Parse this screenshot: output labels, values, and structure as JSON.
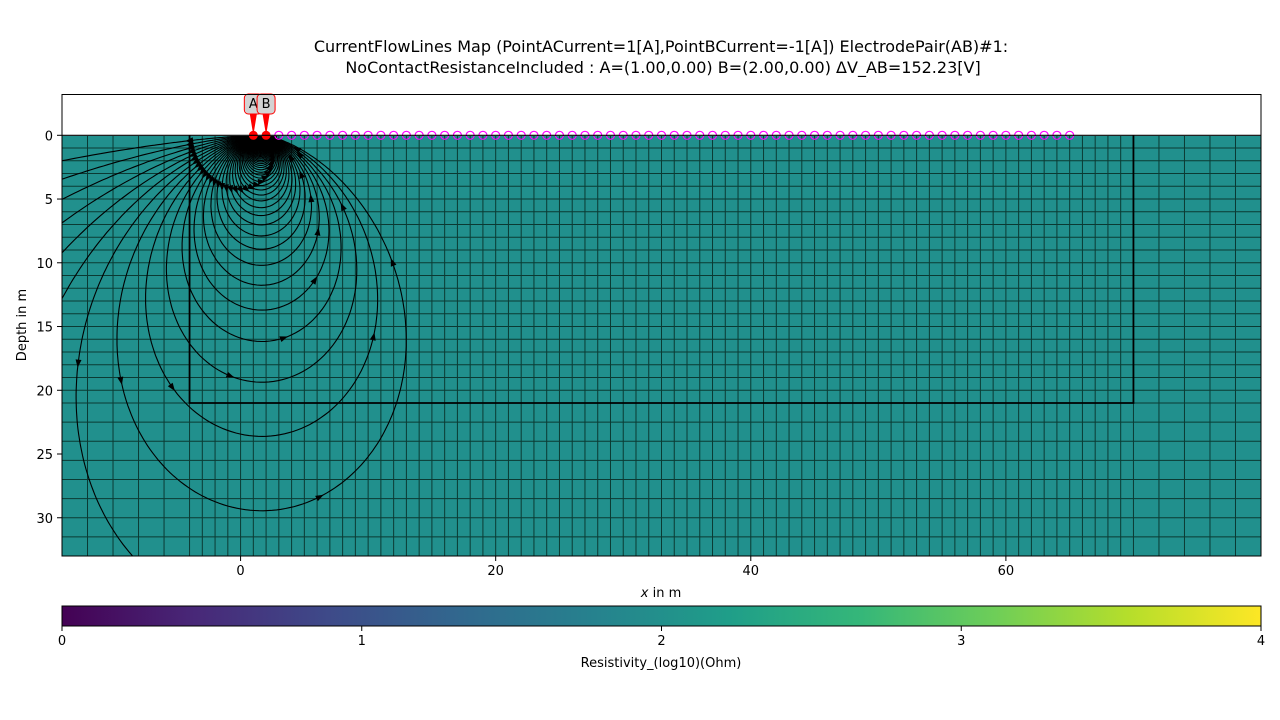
{
  "chart_data": {
    "type": "streamplot",
    "title_line1": "CurrentFlowLines Map (PointACurrent=1[A],PointBCurrent=-1[A]) ElectrodePair(AB)#1:",
    "title_line2": "NoContactResistanceIncluded : A=(1.00,0.00) B=(2.00,0.00) ΔV_AB=152.23[V]",
    "xlabel_italic": "x",
    "xlabel_rest": " in m",
    "ylabel": "Depth in m",
    "xlim": [
      -14,
      80
    ],
    "ylim_depth": [
      -3.2,
      33
    ],
    "xticks": [
      0,
      20,
      40,
      60
    ],
    "xtick_labels": [
      "0",
      "20",
      "40",
      "60"
    ],
    "yticks": [
      0,
      5,
      10,
      15,
      20,
      25,
      30
    ],
    "ytick_labels": [
      "0",
      "5",
      "10",
      "15",
      "20",
      "25",
      "30"
    ],
    "background_value_log10": 2.0,
    "grid_cells": true,
    "inner_region": {
      "x": [
        -4,
        70
      ],
      "depth": [
        0,
        21
      ]
    },
    "electrode_A": {
      "label": "A",
      "x": 1.0,
      "depth": 0.0
    },
    "electrode_B": {
      "label": "B",
      "x": 2.0,
      "depth": 0.0
    },
    "sensor_positions": {
      "from": 3,
      "to": 65,
      "step": 1
    },
    "colorbar": {
      "label": "Resistivity_(log10)(Ohm)",
      "range": [
        0,
        4
      ],
      "ticks": [
        0,
        1,
        2,
        3,
        4
      ],
      "tick_labels": [
        "0",
        "1",
        "2",
        "3",
        "4"
      ],
      "colormap": "viridis"
    },
    "colors": {
      "field": "#21908d",
      "grid": "#0b3a33",
      "electrode": "#ff0000",
      "sensor": "#ff00ff",
      "streamline": "#000000",
      "label_box": "#d3d3d3"
    }
  }
}
